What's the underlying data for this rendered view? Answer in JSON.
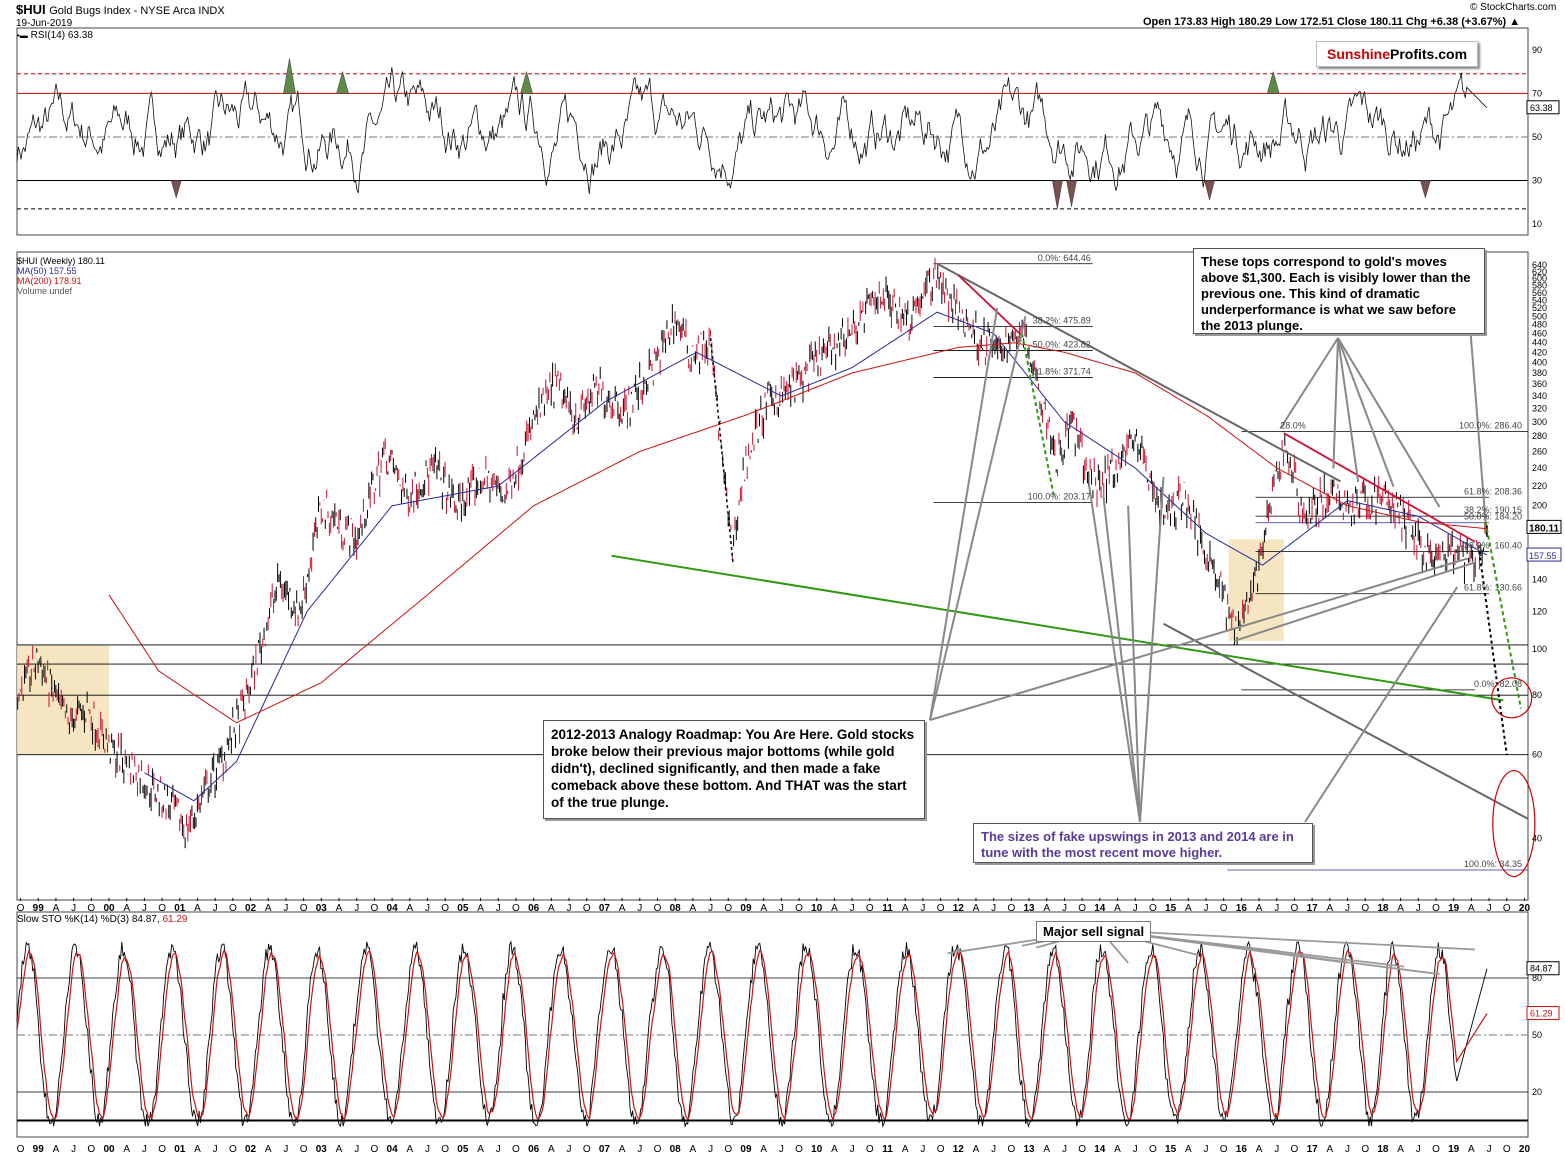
{
  "header": {
    "symbol": "$HUI",
    "name": "Gold Bugs Index - NYSE Arca INDX",
    "date": "19-Jun-2019",
    "copyright": "© StockCharts.com",
    "quote": "Open 173.83  High 180.29  Low 172.51  Close 180.11  Chg +6.38 (+3.67%) ▲"
  },
  "logo": {
    "part1": "Sunshine",
    "part2": "Profits.com"
  },
  "colors": {
    "price": "#000000",
    "ma50": "#2a2a9a",
    "ma200": "#cc1111",
    "highlight": "#f3e2b6",
    "support_green": "#2e9a12",
    "resistance_red": "#cc1133",
    "trend_grey": "#666666"
  },
  "rsi_panel": {
    "label": "RSI(14) 63.38",
    "current": "63.38",
    "ticks": [
      "90",
      "70",
      "50",
      "30",
      "10"
    ]
  },
  "price_panel": {
    "legend": [
      "$HUI (Weekly) 180.11",
      "MA(50) 157.55",
      "MA(200) 178.91",
      "Volume undef"
    ],
    "last_price": "180.11",
    "ma50_value": "157.55",
    "ticks": [
      "640",
      "620",
      "600",
      "580",
      "560",
      "540",
      "520",
      "500",
      "480",
      "460",
      "440",
      "420",
      "400",
      "380",
      "360",
      "340",
      "320",
      "300",
      "280",
      "260",
      "240",
      "220",
      "200",
      "180",
      "160",
      "140",
      "120",
      "100",
      "80",
      "60",
      "40"
    ],
    "fib_labels_2011": [
      "0.0%: 644.46",
      "38.2%: 475.89",
      "50.0%: 423.82",
      "61.8%: 371.74",
      "100.0%: 203.17"
    ],
    "fib_labels_2016": [
      "100.0%: 286.40",
      "61.8%: 208.36",
      "38.2%: 190.15",
      "50.0%: 184.20",
      "38.2%: 160.40",
      "61.8%: 130.66",
      "0.0%: 82.08",
      "100.0%: 34.35"
    ],
    "fib_label_28": "28.0%"
  },
  "x_axis": {
    "labels": [
      "O",
      "99",
      "A",
      "J",
      "O",
      "00",
      "A",
      "J",
      "O",
      "01",
      "A",
      "J",
      "O",
      "02",
      "A",
      "J",
      "O",
      "03",
      "A",
      "J",
      "O",
      "04",
      "A",
      "J",
      "O",
      "05",
      "A",
      "J",
      "O",
      "06",
      "A",
      "J",
      "O",
      "07",
      "A",
      "J",
      "O",
      "08",
      "A",
      "J",
      "O",
      "09",
      "A",
      "J",
      "O",
      "10",
      "A",
      "J",
      "O",
      "11",
      "A",
      "J",
      "O",
      "12",
      "A",
      "J",
      "O",
      "13",
      "A",
      "J",
      "O",
      "14",
      "A",
      "J",
      "O",
      "15",
      "A",
      "J",
      "O",
      "16",
      "A",
      "J",
      "O",
      "17",
      "A",
      "J",
      "O",
      "18",
      "A",
      "J",
      "O",
      "19",
      "A",
      "J",
      "O",
      "20"
    ]
  },
  "annotations": {
    "tops": "These tops correspond to gold's moves above $1,300. Each is visibly lower than the previous one. This kind of dramatic underperformance is what we saw before the 2013 plunge.",
    "roadmap": "2012-2013 Analogy Roadmap: You Are Here. Gold stocks broke below their previous major bottoms (while gold didn't), declined significantly, and then made a fake comeback above these bottom. And THAT was the start of the true plunge.",
    "fake": "The sizes of fake upswings in 2013 and 2014 are in tune with the most recent move higher.",
    "sell": "Major sell signal"
  },
  "sto_panel": {
    "label_prefix": "Slow STO %K(14) %D(3) 84.87,",
    "label_d": "61.29",
    "k_current": "84.87",
    "d_current": "61.29",
    "ticks": [
      "80",
      "50",
      "20"
    ]
  },
  "chart_data": {
    "type": "line",
    "title": "$HUI Gold Bugs Index - NYSE Arca INDX",
    "xlabel": "",
    "ylabel": "",
    "scale": "log",
    "ylim": [
      30,
      650
    ],
    "x_range": [
      "1998-09",
      "2020-01"
    ],
    "series": [
      {
        "name": "$HUI (Weekly) 180.11",
        "x": [
          1998.7,
          1999.0,
          1999.4,
          1999.7,
          2000.0,
          2000.4,
          2000.8,
          2001.1,
          2001.5,
          2001.9,
          2002.4,
          2002.7,
          2003.0,
          2003.5,
          2003.9,
          2004.2,
          2004.6,
          2004.9,
          2005.3,
          2005.6,
          2006.0,
          2006.3,
          2006.6,
          2006.9,
          2007.3,
          2007.7,
          2008.0,
          2008.2,
          2008.5,
          2008.8,
          2009.0,
          2009.3,
          2009.7,
          2010.0,
          2010.5,
          2010.9,
          2011.3,
          2011.7,
          2011.9,
          2012.3,
          2012.6,
          2012.9,
          2013.1,
          2013.4,
          2013.6,
          2013.9,
          2014.2,
          2014.5,
          2014.9,
          2015.2,
          2015.6,
          2015.9,
          2016.2,
          2016.6,
          2016.9,
          2017.2,
          2017.6,
          2018.0,
          2018.4,
          2018.7,
          2019.0,
          2019.3,
          2019.47
        ],
        "y": [
          80,
          95,
          70,
          75,
          62,
          55,
          48,
          42,
          55,
          75,
          140,
          120,
          200,
          170,
          260,
          210,
          240,
          200,
          230,
          210,
          300,
          360,
          310,
          350,
          320,
          390,
          500,
          420,
          440,
          160,
          250,
          330,
          360,
          400,
          470,
          560,
          500,
          620,
          530,
          450,
          420,
          480,
          380,
          250,
          300,
          220,
          240,
          280,
          190,
          210,
          150,
          110,
          140,
          270,
          190,
          210,
          200,
          210,
          180,
          150,
          160,
          150,
          180.11
        ]
      },
      {
        "name": "MA(50) 157.55",
        "x": [
          2000.5,
          2001.2,
          2001.8,
          2002.8,
          2004.0,
          2005.5,
          2007.0,
          2008.3,
          2009.5,
          2010.5,
          2011.7,
          2012.5,
          2013.5,
          2014.5,
          2015.5,
          2016.3,
          2017.5,
          2018.5,
          2019.47
        ],
        "y": [
          55,
          48,
          58,
          120,
          200,
          220,
          330,
          420,
          340,
          390,
          510,
          460,
          300,
          240,
          175,
          150,
          205,
          190,
          157.55
        ]
      },
      {
        "name": "MA(200) 178.91",
        "x": [
          2000.0,
          2000.7,
          2001.8,
          2003.0,
          2004.5,
          2006.0,
          2007.5,
          2009.0,
          2010.5,
          2012.0,
          2012.8,
          2013.5,
          2014.5,
          2015.5,
          2016.5,
          2017.5,
          2018.5,
          2019.47
        ],
        "y": [
          130,
          90,
          70,
          85,
          130,
          200,
          260,
          310,
          380,
          430,
          440,
          420,
          380,
          310,
          240,
          200,
          185,
          178.91
        ]
      }
    ]
  }
}
